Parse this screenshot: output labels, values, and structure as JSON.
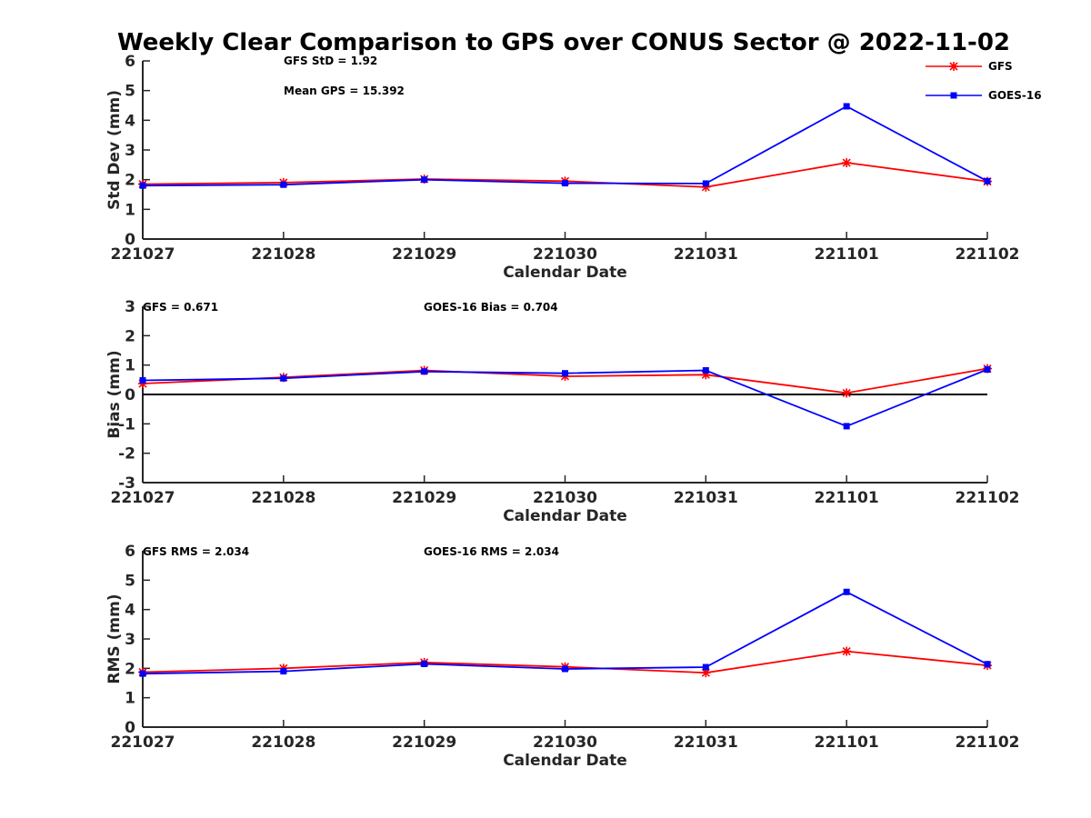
{
  "title": "Weekly Clear Comparison to GPS over CONUS Sector @ 2022-11-02",
  "legend": [
    "GFS",
    "GOES-16"
  ],
  "colors": {
    "GFS": "#ff0000",
    "GOES-16": "#0000ff",
    "axis": "#262626",
    "zero_line": "#000000"
  },
  "chart_data": [
    {
      "type": "line",
      "categories": [
        "221027",
        "221028",
        "221029",
        "221030",
        "221031",
        "221101",
        "221102"
      ],
      "ylabel": "Std Dev (mm)",
      "xlabel": "Calendar Date",
      "ylim": [
        0,
        6
      ],
      "yticks": [
        0,
        1,
        2,
        3,
        4,
        5,
        6
      ],
      "legend_position": "top-right",
      "annotations": [
        "GFS StD = 1.92",
        "Mean GPS = 15.392"
      ],
      "series": [
        {
          "name": "GFS",
          "marker": "asterisk",
          "values": [
            1.85,
            1.9,
            2.02,
            1.95,
            1.75,
            2.57,
            1.94
          ]
        },
        {
          "name": "GOES-16",
          "marker": "square",
          "values": [
            1.8,
            1.83,
            2.0,
            1.88,
            1.87,
            4.47,
            1.95
          ]
        }
      ]
    },
    {
      "type": "line",
      "categories": [
        "221027",
        "221028",
        "221029",
        "221030",
        "221031",
        "221101",
        "221102"
      ],
      "ylabel": "Bias (mm)",
      "xlabel": "Calendar Date",
      "ylim": [
        -3,
        3
      ],
      "yticks": [
        -3,
        -2,
        -1,
        0,
        1,
        2,
        3
      ],
      "zero_line": true,
      "annotations": [
        "GFS = 0.671",
        "GOES-16 Bias  = 0.704"
      ],
      "series": [
        {
          "name": "GFS",
          "marker": "asterisk",
          "values": [
            0.37,
            0.58,
            0.82,
            0.62,
            0.67,
            0.05,
            0.88
          ]
        },
        {
          "name": "GOES-16",
          "marker": "square",
          "values": [
            0.48,
            0.55,
            0.78,
            0.72,
            0.82,
            -1.08,
            0.85
          ]
        }
      ]
    },
    {
      "type": "line",
      "categories": [
        "221027",
        "221028",
        "221029",
        "221030",
        "221031",
        "221101",
        "221102"
      ],
      "ylabel": "RMS (mm)",
      "xlabel": "Calendar Date",
      "ylim": [
        0,
        6
      ],
      "yticks": [
        0,
        1,
        2,
        3,
        4,
        5,
        6
      ],
      "annotations": [
        "GFS RMS = 2.034",
        "GOES-16 RMS = 2.034"
      ],
      "series": [
        {
          "name": "GFS",
          "marker": "asterisk",
          "values": [
            1.87,
            2.0,
            2.2,
            2.05,
            1.85,
            2.58,
            2.1
          ]
        },
        {
          "name": "GOES-16",
          "marker": "square",
          "values": [
            1.82,
            1.9,
            2.15,
            1.98,
            2.04,
            4.6,
            2.14
          ]
        }
      ]
    }
  ]
}
